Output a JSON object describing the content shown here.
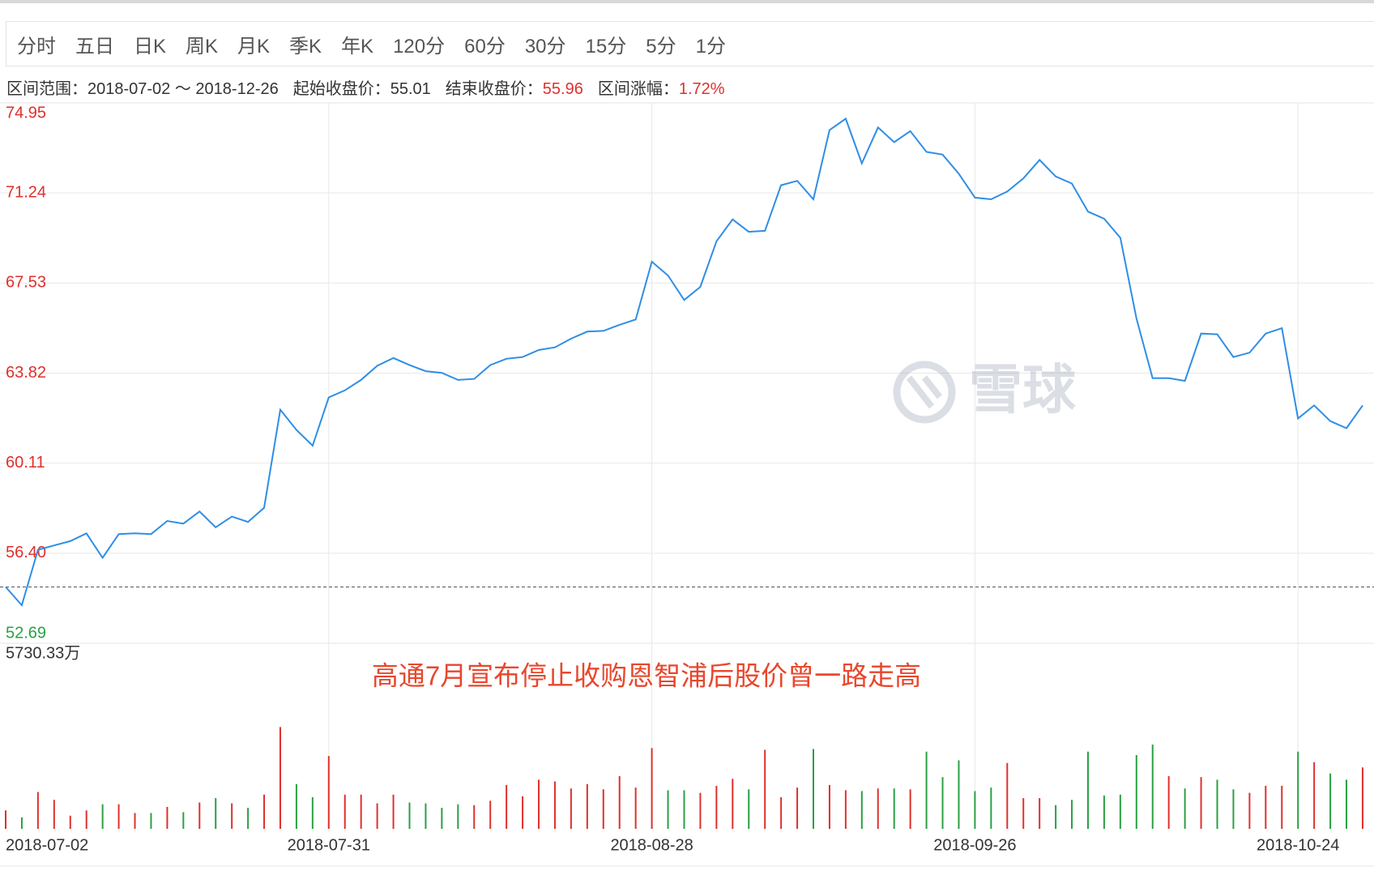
{
  "tabs": [
    "分时",
    "五日",
    "日K",
    "周K",
    "月K",
    "季K",
    "年K",
    "120分",
    "60分",
    "30分",
    "15分",
    "5分",
    "1分"
  ],
  "info": {
    "range_label": "区间范围：",
    "range": "2018-07-02 ～ 2018-12-26",
    "start_label": "起始收盘价：",
    "start_close": 55.01,
    "end_label": "结束收盘价：",
    "end_close": 55.96,
    "change_label": "区间涨幅：",
    "change": "1.72%"
  },
  "watermark": "雪球",
  "chart_data": [
    {
      "type": "line",
      "color": "#2f8ee5",
      "grid": true,
      "ylim": [
        52.69,
        74.95
      ],
      "yticks": [
        74.95,
        71.24,
        67.53,
        63.82,
        60.11,
        {
          "value": 56.4,
          "label": "56.40"
        },
        52.69
      ],
      "up_color": "#e0302c",
      "down_color": "#2aa043",
      "values": [
        55.01,
        54.26,
        56.54,
        56.72,
        56.9,
        57.22,
        56.21,
        57.19,
        57.22,
        57.19,
        57.73,
        57.62,
        58.12,
        57.47,
        57.91,
        57.69,
        58.27,
        62.31,
        61.48,
        60.83,
        62.82,
        63.11,
        63.54,
        64.12,
        64.44,
        64.15,
        63.9,
        63.83,
        63.54,
        63.58,
        64.15,
        64.41,
        64.48,
        64.77,
        64.88,
        65.24,
        65.53,
        65.56,
        65.81,
        66.03,
        68.41,
        67.84,
        66.83,
        67.37,
        69.25,
        70.15,
        69.64,
        69.68,
        71.56,
        71.74,
        70.98,
        73.83,
        74.3,
        72.46,
        73.94,
        73.33,
        73.79,
        72.93,
        72.82,
        72.03,
        71.05,
        70.98,
        71.3,
        71.84,
        72.6,
        71.92,
        71.63,
        70.47,
        70.18,
        69.39,
        66.07,
        63.61,
        63.61,
        63.5,
        65.45,
        65.42,
        64.48,
        64.66,
        65.45,
        65.67,
        61.95,
        62.49,
        61.84,
        61.55,
        62.49
      ]
    },
    {
      "type": "bar",
      "ylim": [
        0,
        5730.33
      ],
      "yticks": [
        {
          "value": 5730.33,
          "label": "5730.33万"
        }
      ],
      "annotation": "高通7月宣布停止收购恩智浦后股价曾一路走高",
      "categories": [
        "2018-07-02",
        null,
        null,
        null,
        null,
        null,
        null,
        null,
        null,
        null,
        null,
        null,
        null,
        null,
        null,
        null,
        null,
        null,
        null,
        null,
        "2018-07-31",
        null,
        null,
        null,
        null,
        null,
        null,
        null,
        null,
        null,
        null,
        null,
        null,
        null,
        null,
        null,
        null,
        null,
        null,
        null,
        "2018-08-28",
        null,
        null,
        null,
        null,
        null,
        null,
        null,
        null,
        null,
        null,
        null,
        null,
        null,
        null,
        null,
        null,
        null,
        null,
        null,
        "2018-09-26",
        null,
        null,
        null,
        null,
        null,
        null,
        null,
        null,
        null,
        null,
        null,
        null,
        null,
        null,
        null,
        null,
        null,
        null,
        null,
        "2018-10-24",
        null,
        null,
        null,
        null
      ],
      "values": [
        584,
        362,
        1168,
        918,
        417,
        584,
        779,
        779,
        501,
        501,
        696,
        529,
        835,
        974,
        807,
        668,
        1085,
        3227,
        1419,
        1002,
        2309,
        1085,
        1085,
        807,
        1085,
        835,
        807,
        668,
        779,
        751,
        890,
        1391,
        1029,
        1558,
        1502,
        1280,
        1419,
        1252,
        1669,
        1308,
        2559,
        1224,
        1224,
        1141,
        1363,
        1586,
        1252,
        2504,
        1002,
        1308,
        2532,
        1391,
        1224,
        1196,
        1280,
        1280,
        1252,
        2448,
        1641,
        2170,
        1196,
        1308,
        2087,
        974,
        974,
        751,
        918,
        2448,
        1057,
        1085,
        2337,
        2671,
        1669,
        1280,
        1641,
        1558,
        1252,
        1141,
        1363,
        1363,
        2448,
        2114,
        1753,
        1558,
        1947
      ]
    }
  ]
}
